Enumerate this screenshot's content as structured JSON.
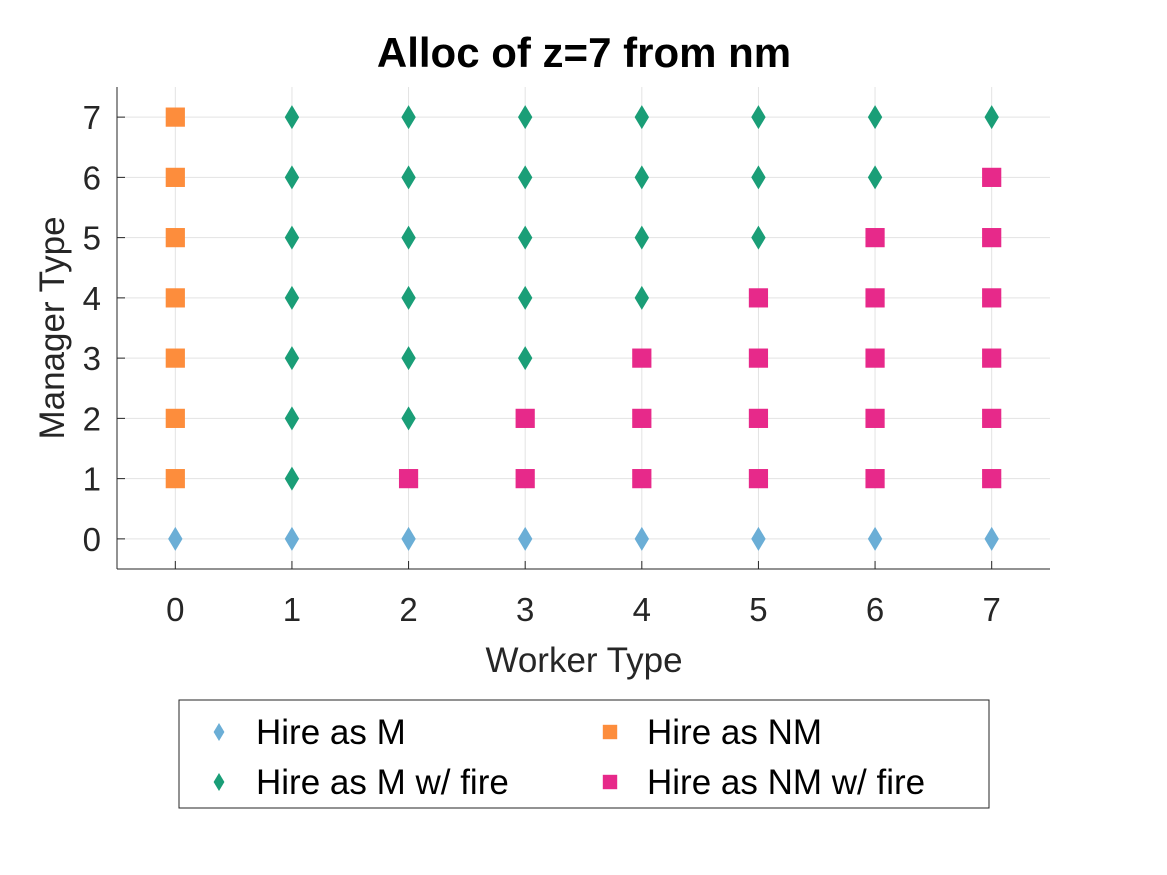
{
  "chart_data": {
    "type": "scatter",
    "title": "Alloc of z=7 from nm",
    "xlabel": "Worker Type",
    "ylabel": "Manager Type",
    "xlim": [
      -0.5,
      7.5
    ],
    "ylim": [
      -0.5,
      7.5
    ],
    "xticks": [
      "0",
      "1",
      "2",
      "3",
      "4",
      "5",
      "6",
      "7"
    ],
    "yticks": [
      "0",
      "1",
      "2",
      "3",
      "4",
      "5",
      "6",
      "7"
    ],
    "grid": true,
    "legend_position": "bottom-outside",
    "series": [
      {
        "name": "Hire as M",
        "marker": "diamond",
        "color": "#6baed6",
        "points": [
          [
            0,
            0
          ],
          [
            1,
            0
          ],
          [
            2,
            0
          ],
          [
            3,
            0
          ],
          [
            4,
            0
          ],
          [
            5,
            0
          ],
          [
            6,
            0
          ],
          [
            7,
            0
          ]
        ]
      },
      {
        "name": "Hire as NM",
        "marker": "square",
        "color": "#fd8d3c",
        "points": [
          [
            0,
            1
          ],
          [
            0,
            2
          ],
          [
            0,
            3
          ],
          [
            0,
            4
          ],
          [
            0,
            5
          ],
          [
            0,
            6
          ],
          [
            0,
            7
          ]
        ]
      },
      {
        "name": "Hire as M w/ fire",
        "marker": "diamond",
        "color": "#1a9e77",
        "points": [
          [
            1,
            1
          ],
          [
            1,
            2
          ],
          [
            1,
            3
          ],
          [
            1,
            4
          ],
          [
            1,
            5
          ],
          [
            1,
            6
          ],
          [
            1,
            7
          ],
          [
            2,
            2
          ],
          [
            2,
            3
          ],
          [
            2,
            4
          ],
          [
            2,
            5
          ],
          [
            2,
            6
          ],
          [
            2,
            7
          ],
          [
            3,
            3
          ],
          [
            3,
            4
          ],
          [
            3,
            5
          ],
          [
            3,
            6
          ],
          [
            3,
            7
          ],
          [
            4,
            4
          ],
          [
            4,
            5
          ],
          [
            4,
            6
          ],
          [
            4,
            7
          ],
          [
            5,
            5
          ],
          [
            5,
            6
          ],
          [
            5,
            7
          ],
          [
            6,
            6
          ],
          [
            6,
            7
          ],
          [
            7,
            7
          ]
        ]
      },
      {
        "name": "Hire as NM w/ fire",
        "marker": "square",
        "color": "#e7298a",
        "points": [
          [
            2,
            1
          ],
          [
            3,
            1
          ],
          [
            3,
            2
          ],
          [
            4,
            1
          ],
          [
            4,
            2
          ],
          [
            4,
            3
          ],
          [
            5,
            1
          ],
          [
            5,
            2
          ],
          [
            5,
            3
          ],
          [
            5,
            4
          ],
          [
            6,
            1
          ],
          [
            6,
            2
          ],
          [
            6,
            3
          ],
          [
            6,
            4
          ],
          [
            6,
            5
          ],
          [
            7,
            1
          ],
          [
            7,
            2
          ],
          [
            7,
            3
          ],
          [
            7,
            4
          ],
          [
            7,
            5
          ],
          [
            7,
            6
          ]
        ]
      }
    ],
    "legend_order": [
      0,
      1,
      2,
      3
    ]
  }
}
